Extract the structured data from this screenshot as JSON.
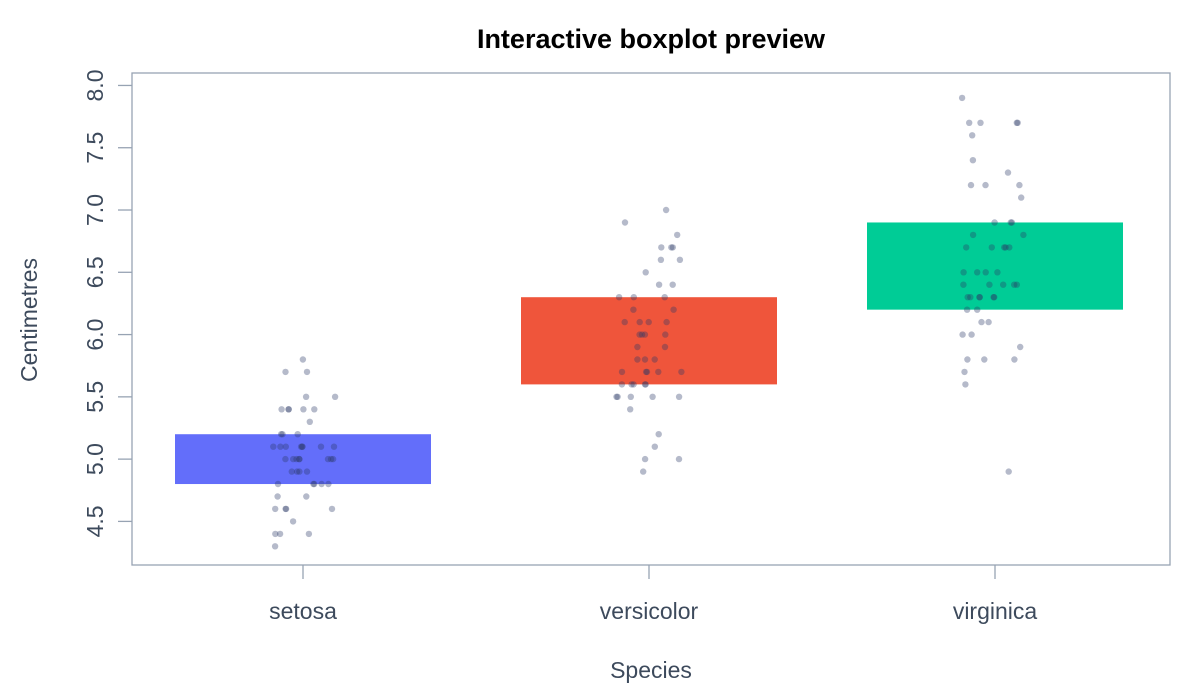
{
  "chart_data": {
    "type": "box",
    "title": "Interactive boxplot preview",
    "xlabel": "Species",
    "ylabel": "Centimetres",
    "categories": [
      "setosa",
      "versicolor",
      "virginica"
    ],
    "ylim": [
      4.15,
      8.1
    ],
    "yticks": [
      "4.5",
      "5.0",
      "5.5",
      "6.0",
      "6.5",
      "7.0",
      "7.5",
      "8.0"
    ],
    "boxes": [
      {
        "category": "setosa",
        "q1": 4.8,
        "q3": 5.2,
        "color": "#636efa"
      },
      {
        "category": "versicolor",
        "q1": 5.6,
        "q3": 6.3,
        "color": "#ef553b"
      },
      {
        "category": "virginica",
        "q1": 6.2,
        "q3": 6.9,
        "color": "#00cc96"
      }
    ],
    "points": {
      "color": "#2a3a66",
      "setosa": [
        5.1,
        4.9,
        4.7,
        4.6,
        5.0,
        5.4,
        4.6,
        5.0,
        4.4,
        4.9,
        5.4,
        4.8,
        4.8,
        4.3,
        5.8,
        5.7,
        5.4,
        5.1,
        5.7,
        5.1,
        5.4,
        5.1,
        4.6,
        5.1,
        4.8,
        5.0,
        5.0,
        5.2,
        5.2,
        4.7,
        4.8,
        5.4,
        5.2,
        5.5,
        4.9,
        5.0,
        5.5,
        4.9,
        4.4,
        5.1,
        5.0,
        4.5,
        4.4,
        5.0,
        5.1,
        4.8,
        5.1,
        4.6,
        5.3,
        5.0
      ],
      "versicolor": [
        7.0,
        6.4,
        6.9,
        5.5,
        6.5,
        5.7,
        6.3,
        4.9,
        6.6,
        5.2,
        5.0,
        5.9,
        6.0,
        6.1,
        5.6,
        6.7,
        5.6,
        5.8,
        6.2,
        5.6,
        5.9,
        6.1,
        6.3,
        6.1,
        6.4,
        6.6,
        6.8,
        6.7,
        6.0,
        5.7,
        5.5,
        5.5,
        5.8,
        6.0,
        5.4,
        6.0,
        6.7,
        6.3,
        5.6,
        5.5,
        5.5,
        6.1,
        5.8,
        5.0,
        5.6,
        5.7,
        5.7,
        6.2,
        5.1,
        5.7
      ],
      "virginica": [
        6.3,
        5.8,
        7.1,
        6.3,
        6.5,
        7.6,
        4.9,
        7.3,
        6.7,
        7.2,
        6.5,
        6.4,
        6.8,
        5.7,
        5.8,
        6.4,
        6.5,
        7.7,
        7.7,
        6.0,
        6.9,
        5.6,
        7.7,
        6.3,
        6.7,
        7.2,
        6.2,
        6.1,
        6.4,
        7.2,
        7.4,
        7.9,
        6.4,
        6.3,
        6.1,
        7.7,
        6.3,
        6.4,
        6.0,
        6.9,
        6.7,
        6.9,
        5.8,
        6.8,
        6.7,
        6.7,
        6.3,
        6.5,
        6.2,
        5.9
      ]
    },
    "grid": false,
    "legend": "none"
  }
}
